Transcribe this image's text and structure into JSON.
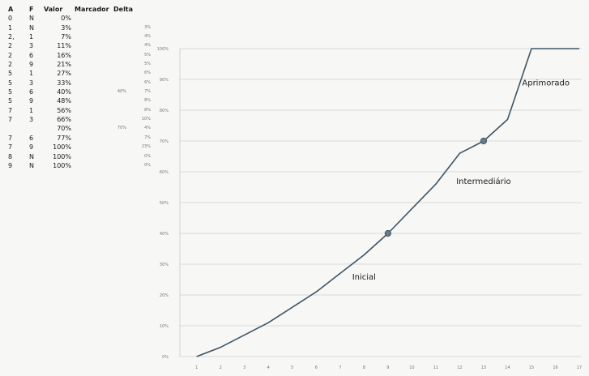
{
  "table": {
    "headers": {
      "a": "A",
      "f": "F",
      "valor": "Valor",
      "marcador": "Marcador",
      "delta": "Delta"
    },
    "rows": [
      {
        "a": "0",
        "f": "N",
        "valor": "0%",
        "marcador": "",
        "delta": ""
      },
      {
        "a": "1",
        "f": "N",
        "valor": "3%",
        "marcador": "",
        "delta": "3%"
      },
      {
        "a": "2,",
        "f": "1",
        "valor": "7%",
        "marcador": "",
        "delta": "4%"
      },
      {
        "a": "2",
        "f": "3",
        "valor": "11%",
        "marcador": "",
        "delta": "4%"
      },
      {
        "a": "2",
        "f": "6",
        "valor": "16%",
        "marcador": "",
        "delta": "5%"
      },
      {
        "a": "2",
        "f": "9",
        "valor": "21%",
        "marcador": "",
        "delta": "5%"
      },
      {
        "a": "5",
        "f": "1",
        "valor": "27%",
        "marcador": "",
        "delta": "6%"
      },
      {
        "a": "5",
        "f": "3",
        "valor": "33%",
        "marcador": "",
        "delta": "6%"
      },
      {
        "a": "5",
        "f": "6",
        "valor": "40%",
        "marcador": "40%",
        "delta": "7%"
      },
      {
        "a": "5",
        "f": "9",
        "valor": "48%",
        "marcador": "",
        "delta": "8%"
      },
      {
        "a": "7",
        "f": "1",
        "valor": "56%",
        "marcador": "",
        "delta": "8%"
      },
      {
        "a": "7",
        "f": "3",
        "valor": "66%",
        "marcador": "",
        "delta": "10%"
      },
      {
        "a": "",
        "f": "",
        "valor": "70%",
        "marcador": "70%",
        "delta": "4%"
      },
      {
        "a": "7",
        "f": "6",
        "valor": "77%",
        "marcador": "",
        "delta": "7%"
      },
      {
        "a": "7",
        "f": "9",
        "valor": "100%",
        "marcador": "",
        "delta": "23%"
      },
      {
        "a": "8",
        "f": "N",
        "valor": "100%",
        "marcador": "",
        "delta": "0%"
      },
      {
        "a": "9",
        "f": "N",
        "valor": "100%",
        "marcador": "",
        "delta": "0%"
      }
    ]
  },
  "chart_data": {
    "type": "line",
    "x": [
      1,
      2,
      3,
      4,
      5,
      6,
      7,
      8,
      9,
      10,
      11,
      12,
      13,
      14,
      15,
      16,
      17
    ],
    "xticks": [
      "1",
      "2",
      "3",
      "4",
      "5",
      "6",
      "7",
      "8",
      "9",
      "10",
      "11",
      "12",
      "13",
      "14",
      "15",
      "16",
      "17"
    ],
    "yticks": [
      "0%",
      "10%",
      "20%",
      "30%",
      "40%",
      "50%",
      "60%",
      "70%",
      "80%",
      "90%",
      "100%"
    ],
    "ylim": [
      0,
      100
    ],
    "grid": true,
    "series": [
      {
        "values": [
          0,
          3,
          7,
          11,
          16,
          21,
          27,
          33,
          40,
          48,
          56,
          66,
          70,
          77,
          100,
          100,
          100
        ],
        "color": "#3d5568"
      }
    ],
    "markers": [
      {
        "x": 9,
        "y": 40
      },
      {
        "x": 13,
        "y": 70
      }
    ],
    "annotations": [
      {
        "text": "Inicial",
        "x": 8,
        "y": 25
      },
      {
        "text": "Intermediário",
        "x": 13,
        "y": 56
      },
      {
        "text": "Aprimorado",
        "x": 15.6,
        "y": 88
      }
    ]
  }
}
